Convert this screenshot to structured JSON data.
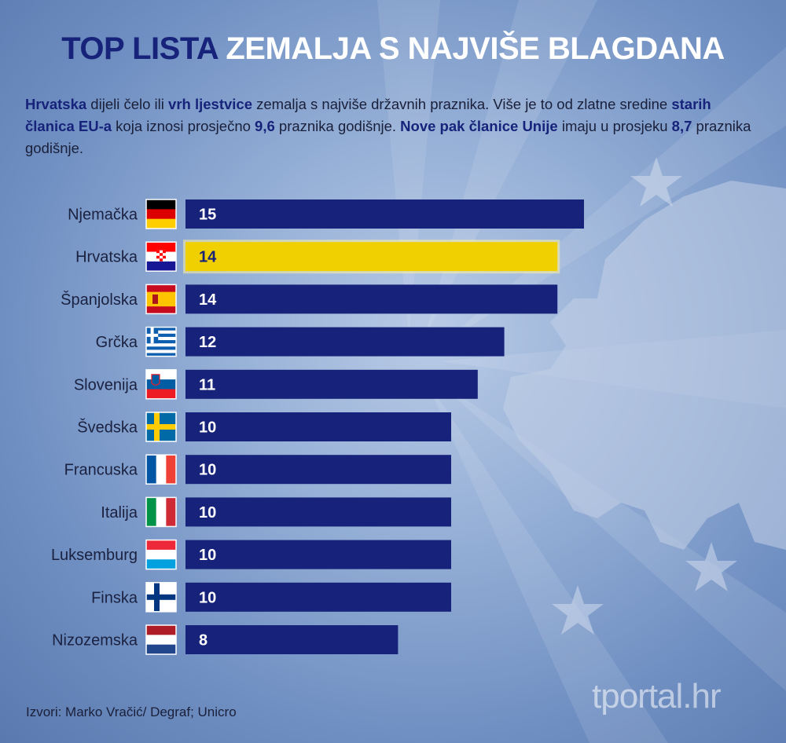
{
  "title": {
    "part1": "TOP LISTA",
    "part2": "ZEMALJA S NAJVIŠE BLAGDANA"
  },
  "intro": [
    {
      "t": "Hrvatska",
      "b": true
    },
    {
      "t": " dijeli čelo ili ",
      "b": false
    },
    {
      "t": "vrh ljestvice",
      "b": true
    },
    {
      "t": " zemalja s najviše državnih praznika. Više je to od zlatne sredine ",
      "b": false
    },
    {
      "t": "starih članica EU-a",
      "b": true
    },
    {
      "t": " koja iznosi prosječno ",
      "b": false
    },
    {
      "t": "9,6",
      "b": true
    },
    {
      "t": " praznika godišnje. ",
      "b": false
    },
    {
      "t": "Nove pak članice Unije",
      "b": true
    },
    {
      "t": " imaju u prosjeku ",
      "b": false
    },
    {
      "t": "8,7",
      "b": true
    },
    {
      "t": " praznika godišnje.",
      "b": false
    }
  ],
  "colors": {
    "bar": "#17237a",
    "highlight": "#f0d000",
    "highlight_text": "#17237a",
    "bar_text": "#ffffff"
  },
  "chart_data": {
    "type": "bar",
    "orientation": "horizontal",
    "categories": [
      "Njemačka",
      "Hrvatska",
      "Španjolska",
      "Grčka",
      "Slovenija",
      "Švedska",
      "Francuska",
      "Italija",
      "Luksemburg",
      "Finska",
      "Nizozemska"
    ],
    "values": [
      15,
      14,
      14,
      12,
      11,
      10,
      10,
      10,
      10,
      10,
      8
    ],
    "flags": [
      "germany",
      "croatia",
      "spain",
      "greece",
      "slovenia",
      "sweden",
      "france",
      "italy",
      "luxembourg",
      "finland",
      "netherlands"
    ],
    "highlight": "Hrvatska",
    "xlim": [
      0,
      15
    ],
    "grid": false
  },
  "source": "Izvori: Marko Vračić/ Degraf; Unicro",
  "logo": "tportal.hr"
}
